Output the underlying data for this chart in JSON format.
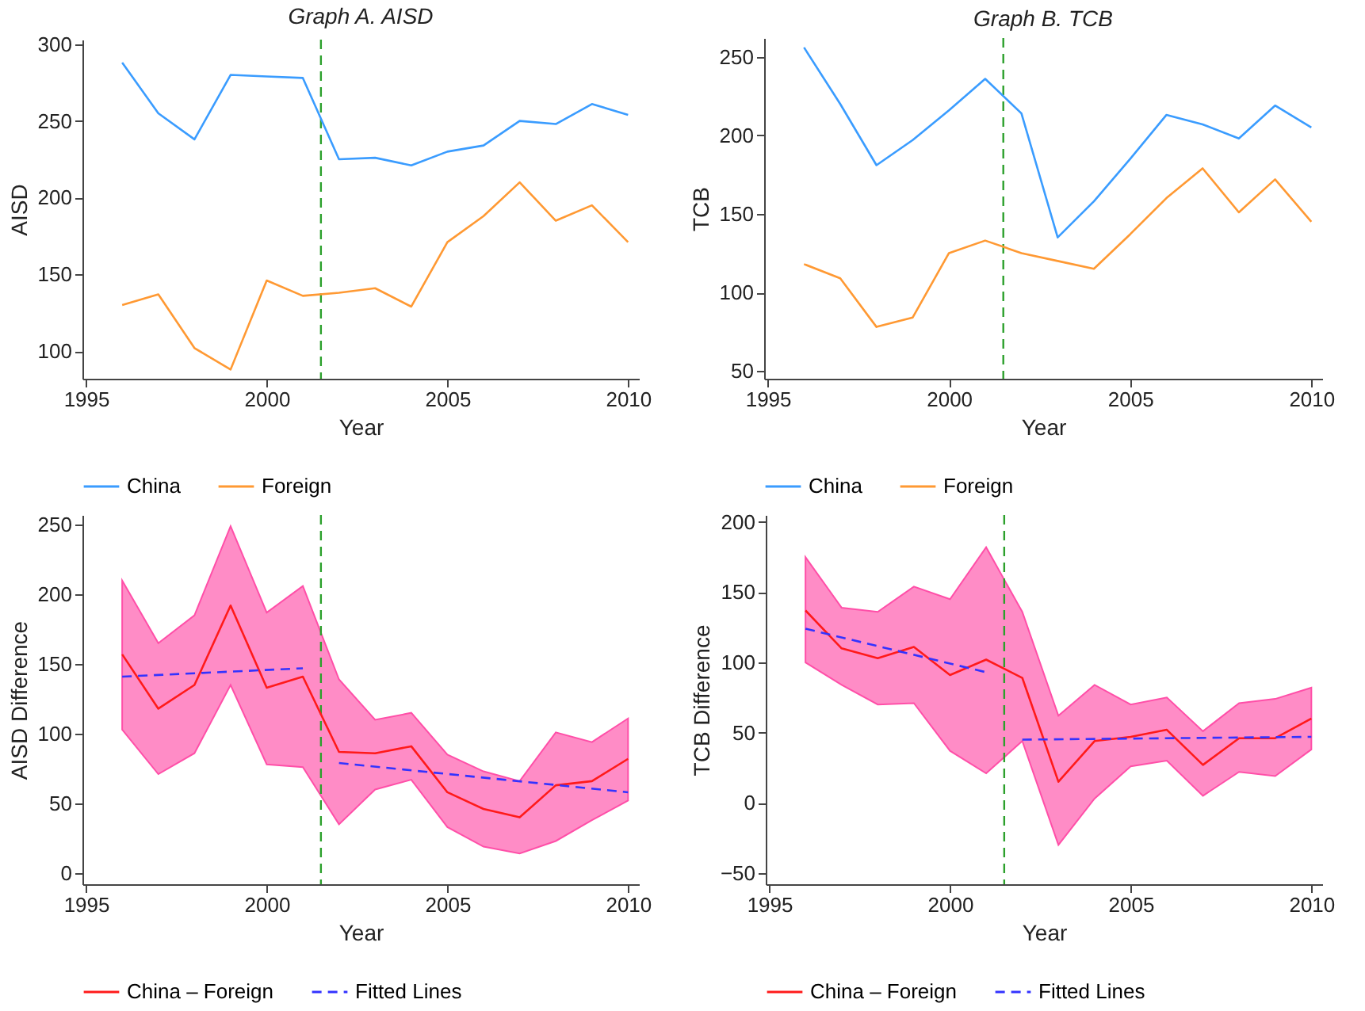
{
  "chart_data": [
    {
      "type": "line",
      "title": "Graph A. AISD",
      "xlabel": "Year",
      "ylabel": "AISD",
      "x": [
        1996,
        1997,
        1998,
        1999,
        2000,
        2001,
        2002,
        2003,
        2004,
        2005,
        2006,
        2007,
        2008,
        2009,
        2010
      ],
      "xlim": [
        1994.9,
        2010.3
      ],
      "xticks": [
        1995,
        2000,
        2005,
        2010
      ],
      "ylim": [
        82,
        303
      ],
      "yticks": [
        100,
        150,
        200,
        250,
        300
      ],
      "grid": false,
      "legend": "bottom",
      "series": [
        {
          "name": "China",
          "color": "#3a9cff",
          "values": [
            288,
            255,
            238,
            280,
            279,
            278,
            225,
            226,
            221,
            230,
            234,
            250,
            248,
            261,
            254
          ]
        },
        {
          "name": "Foreign",
          "color": "#ff9933",
          "values": [
            130,
            137,
            102,
            88,
            146,
            136,
            138,
            141,
            129,
            171,
            188,
            210,
            185,
            195,
            171
          ]
        }
      ],
      "ref_lines": [
        {
          "axis": "x",
          "value": 2001.5,
          "color": "#2ca02c",
          "line_style": "dashed"
        }
      ]
    },
    {
      "type": "line",
      "title": "Graph B. TCB",
      "xlabel": "Year",
      "ylabel": "TCB",
      "x": [
        1996,
        1997,
        1998,
        1999,
        2000,
        2001,
        2002,
        2003,
        2004,
        2005,
        2006,
        2007,
        2008,
        2009,
        2010
      ],
      "xlim": [
        1994.9,
        2010.3
      ],
      "xticks": [
        1995,
        2000,
        2005,
        2010
      ],
      "ylim": [
        45,
        262
      ],
      "yticks": [
        50,
        100,
        150,
        200,
        250
      ],
      "grid": false,
      "legend": "bottom",
      "series": [
        {
          "name": "China",
          "color": "#3a9cff",
          "values": [
            256,
            220,
            181,
            197,
            216,
            236,
            214,
            135,
            158,
            185,
            213,
            207,
            198,
            219,
            205
          ]
        },
        {
          "name": "Foreign",
          "color": "#ff9933",
          "values": [
            118,
            109,
            78,
            84,
            125,
            133,
            125,
            120,
            115,
            137,
            160,
            179,
            151,
            172,
            145
          ]
        }
      ],
      "ref_lines": [
        {
          "axis": "x",
          "value": 2001.5,
          "color": "#2ca02c",
          "line_style": "dashed"
        }
      ]
    },
    {
      "type": "line",
      "xlabel": "Year",
      "ylabel": "AISD Difference",
      "x": [
        1996,
        1997,
        1998,
        1999,
        2000,
        2001,
        2002,
        2003,
        2004,
        2005,
        2006,
        2007,
        2008,
        2009,
        2010
      ],
      "xlim": [
        1994.9,
        2010.3
      ],
      "xticks": [
        1995,
        2000,
        2005,
        2010
      ],
      "ylim": [
        -8,
        257
      ],
      "yticks": [
        0,
        50,
        100,
        150,
        200,
        250
      ],
      "grid": false,
      "legend": "bottom",
      "series": [
        {
          "name": "China – Foreign",
          "color": "#ff1a1a",
          "values": [
            157,
            118,
            135,
            192,
            133,
            141,
            87,
            86,
            91,
            58,
            46,
            40,
            63,
            66,
            82
          ],
          "lower": [
            103,
            71,
            86,
            135,
            78,
            76,
            35,
            60,
            67,
            33,
            19,
            14,
            23,
            38,
            52
          ],
          "upper": [
            210,
            165,
            185,
            249,
            187,
            206,
            139,
            110,
            115,
            85,
            73,
            66,
            101,
            94,
            111
          ]
        },
        {
          "name": "Fitted Lines",
          "type": "line",
          "color": "#3333ff",
          "line_style": "dashed",
          "x": [
            1996,
            2001
          ],
          "values": [
            141,
            147
          ]
        },
        {
          "type": "line",
          "color": "#3333ff",
          "line_style": "dashed",
          "x": [
            2002,
            2010
          ],
          "values": [
            79,
            58
          ]
        }
      ],
      "ref_lines": [
        {
          "axis": "x",
          "value": 2001.5,
          "color": "#2ca02c",
          "line_style": "dashed"
        }
      ]
    },
    {
      "type": "line",
      "xlabel": "Year",
      "ylabel": "TCB Difference",
      "x": [
        1996,
        1997,
        1998,
        1999,
        2000,
        2001,
        2002,
        2003,
        2004,
        2005,
        2006,
        2007,
        2008,
        2009,
        2010
      ],
      "xlim": [
        1994.9,
        2010.3
      ],
      "xticks": [
        1995,
        2000,
        2005,
        2010
      ],
      "ylim": [
        -58,
        205
      ],
      "yticks": [
        -50,
        0,
        50,
        100,
        150,
        200
      ],
      "grid": false,
      "legend": "bottom",
      "series": [
        {
          "name": "China – Foreign",
          "color": "#ff1a1a",
          "values": [
            137,
            110,
            103,
            111,
            91,
            102,
            89,
            15,
            44,
            47,
            52,
            27,
            46,
            46,
            60
          ],
          "lower": [
            100,
            84,
            70,
            71,
            37,
            21,
            44,
            -30,
            3,
            26,
            30,
            5,
            22,
            19,
            38
          ],
          "upper": [
            175,
            139,
            136,
            154,
            145,
            182,
            136,
            62,
            84,
            70,
            75,
            51,
            71,
            74,
            82
          ]
        },
        {
          "name": "Fitted Lines",
          "type": "line",
          "color": "#3333ff",
          "line_style": "dashed",
          "x": [
            1996,
            2001
          ],
          "values": [
            124,
            93
          ]
        },
        {
          "type": "line",
          "color": "#3333ff",
          "line_style": "dashed",
          "x": [
            2002,
            2010
          ],
          "values": [
            45,
            47
          ]
        }
      ],
      "ref_lines": [
        {
          "axis": "x",
          "value": 2001.5,
          "color": "#2ca02c",
          "line_style": "dashed"
        }
      ]
    }
  ]
}
